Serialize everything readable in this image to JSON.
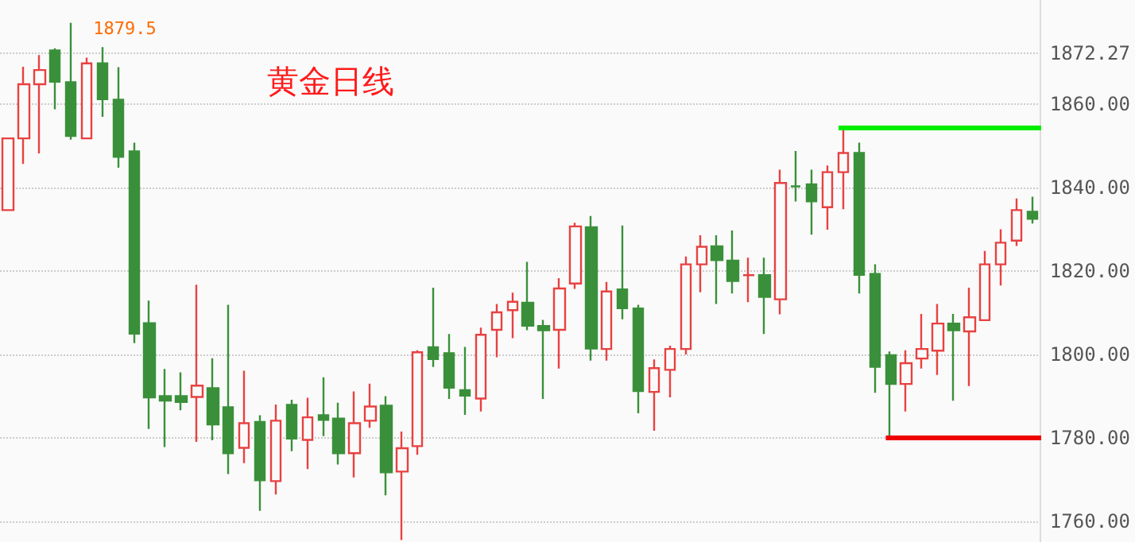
{
  "chart_data": {
    "type": "candlestick",
    "title": "黄金日线",
    "categories": [
      null,
      null,
      null,
      null,
      null,
      null,
      null,
      null,
      null,
      null,
      null,
      null,
      null,
      null,
      null,
      null,
      null,
      null,
      null,
      null,
      null,
      null,
      null,
      null,
      null,
      null,
      null,
      null,
      null,
      null,
      null,
      null,
      null,
      null,
      null,
      null,
      null,
      null,
      null,
      null,
      null,
      null,
      null,
      null,
      null,
      null,
      null,
      null,
      null,
      null,
      null,
      null,
      null,
      null,
      null,
      null,
      null,
      null,
      null,
      null,
      null,
      null,
      null,
      null,
      null,
      null
    ],
    "ohlc": [
      [
        1834.6,
        1851.8,
        1834.6,
        1851.8
      ],
      [
        1851.8,
        1869,
        1845.7,
        1864.8
      ],
      [
        1864.8,
        1871.8,
        1848.2,
        1868.2
      ],
      [
        1872.9,
        1873.4,
        1858.8,
        1865.4
      ],
      [
        1865.3,
        1879.5,
        1851.5,
        1852.4
      ],
      [
        1851.8,
        1871.2,
        1851.8,
        1869.8
      ],
      [
        1869.8,
        1873.7,
        1857,
        1861.2
      ],
      [
        1861.1,
        1868.9,
        1844.8,
        1847.4
      ],
      [
        1848.7,
        1850.8,
        1802.7,
        1805
      ],
      [
        1807.5,
        1812.9,
        1782.1,
        1789.7
      ],
      [
        1790,
        1796.5,
        1777.8,
        1788.9
      ],
      [
        1790,
        1795.7,
        1786.6,
        1788.6
      ],
      [
        1789.8,
        1816.7,
        1779,
        1792.5
      ],
      [
        1791.9,
        1799.1,
        1779.4,
        1783.2
      ],
      [
        1787.3,
        1811.9,
        1771.3,
        1776.3
      ],
      [
        1777.6,
        1796.1,
        1773.9,
        1783.5
      ],
      [
        1783.8,
        1785.4,
        1762.5,
        1769.8
      ],
      [
        1769.6,
        1788,
        1766.4,
        1784.1
      ],
      [
        1787.9,
        1789.1,
        1776.8,
        1779.8
      ],
      [
        1779.5,
        1789.6,
        1772.5,
        1784.9
      ],
      [
        1785.4,
        1794.5,
        1780.4,
        1784.3
      ],
      [
        1784.6,
        1788.4,
        1773.6,
        1776.3
      ],
      [
        1776.3,
        1791.1,
        1770.5,
        1783.5
      ],
      [
        1784.1,
        1793,
        1782.4,
        1787.5
      ],
      [
        1787.7,
        1790,
        1766.2,
        1771.7
      ],
      [
        1771.9,
        1781.5,
        1755.5,
        1777.5
      ],
      [
        1778,
        1801,
        1775.9,
        1800.5
      ],
      [
        1801.7,
        1816,
        1797,
        1798.9
      ],
      [
        1800.3,
        1804.9,
        1789.3,
        1792
      ],
      [
        1791.4,
        1801.8,
        1785.5,
        1790.1
      ],
      [
        1789.4,
        1806.4,
        1786.3,
        1804.7
      ],
      [
        1805.9,
        1812.1,
        1799.3,
        1810.1
      ],
      [
        1810.6,
        1814.8,
        1803.9,
        1812.6
      ],
      [
        1812.4,
        1822.2,
        1805.8,
        1806.9
      ],
      [
        1806.8,
        1808.3,
        1789.3,
        1805.8
      ],
      [
        1805.9,
        1818.3,
        1796.6,
        1815.8
      ],
      [
        1817,
        1831.6,
        1815.7,
        1830.7
      ],
      [
        1830.5,
        1833.2,
        1798.5,
        1801.4
      ],
      [
        1801.3,
        1817.4,
        1798.5,
        1815.1
      ],
      [
        1815.6,
        1830.9,
        1808.4,
        1811.1
      ],
      [
        1811,
        1811.9,
        1785.9,
        1791.2
      ],
      [
        1791,
        1798.8,
        1781.7,
        1796.7
      ],
      [
        1796.3,
        1802.1,
        1789.7,
        1801.3
      ],
      [
        1801.3,
        1823.5,
        1800,
        1821.6
      ],
      [
        1821.6,
        1828.6,
        1814.9,
        1825.8
      ],
      [
        1825.9,
        1828.6,
        1812.1,
        1822.6
      ],
      [
        1822.5,
        1829.7,
        1814.6,
        1817.6
      ],
      [
        1819,
        1823.2,
        1812.5,
        1819
      ],
      [
        1819,
        1823.2,
        1804.9,
        1813.8
      ],
      [
        1813.2,
        1844.3,
        1809.6,
        1841.1
      ],
      [
        1840.3,
        1848.8,
        1836.7,
        1840.3
      ],
      [
        1840.8,
        1844.3,
        1828.7,
        1836.7
      ],
      [
        1835.3,
        1845.3,
        1829.9,
        1843.7
      ],
      [
        1843.7,
        1854.5,
        1834.8,
        1848.3
      ],
      [
        1848.3,
        1850.8,
        1814.6,
        1819.1
      ],
      [
        1819.3,
        1821.6,
        1790.8,
        1797
      ],
      [
        1799.8,
        1800.7,
        1780,
        1792.9
      ],
      [
        1792.9,
        1801,
        1786.3,
        1797.9
      ],
      [
        1799,
        1809.7,
        1796.6,
        1801.3
      ],
      [
        1800.9,
        1812.1,
        1795.1,
        1807.4
      ],
      [
        1807.4,
        1809.7,
        1788.9,
        1805.8
      ],
      [
        1805.5,
        1816,
        1792.4,
        1808.9
      ],
      [
        1808.2,
        1824.8,
        1808.2,
        1821.6
      ],
      [
        1821.6,
        1830,
        1816.5,
        1826.8
      ],
      [
        1827.3,
        1837.4,
        1826,
        1834.6
      ],
      [
        1834.2,
        1837.8,
        1831.4,
        1832.5
      ]
    ],
    "colors": [
      "#e84141",
      "#e84141",
      "#e84141",
      "#3a903a",
      "#3a903a",
      "#e84141",
      "#3a903a",
      "#3a903a",
      "#3a903a",
      "#3a903a",
      "#3a903a",
      "#3a903a",
      "#e84141",
      "#3a903a",
      "#3a903a",
      "#e84141",
      "#3a903a",
      "#e84141",
      "#3a903a",
      "#e84141",
      "#3a903a",
      "#3a903a",
      "#e84141",
      "#e84141",
      "#3a903a",
      "#e84141",
      "#e84141",
      "#3a903a",
      "#3a903a",
      "#3a903a",
      "#e84141",
      "#e84141",
      "#e84141",
      "#3a903a",
      "#3a903a",
      "#e84141",
      "#e84141",
      "#3a903a",
      "#e84141",
      "#3a903a",
      "#3a903a",
      "#e84141",
      "#e84141",
      "#e84141",
      "#e84141",
      "#3a903a",
      "#3a903a",
      "#e84141",
      "#3a903a",
      "#e84141",
      "#3a903a",
      "#3a903a",
      "#e84141",
      "#e84141",
      "#3a903a",
      "#3a903a",
      "#3a903a",
      "#e84141",
      "#e84141",
      "#e84141",
      "#3a903a",
      "#e84141",
      "#e84141",
      "#e84141",
      "#e84141",
      "#3a903a"
    ],
    "ylim": [
      1755,
      1885
    ],
    "yticks": [
      {
        "value": 1760,
        "label": "1760.00"
      },
      {
        "value": 1780,
        "label": "1780.00"
      },
      {
        "value": 1800,
        "label": "1800.00"
      },
      {
        "value": 1820,
        "label": "1820.00"
      },
      {
        "value": 1840,
        "label": "1840.00"
      },
      {
        "value": 1860,
        "label": "1860.00"
      },
      {
        "value": 1872.27,
        "label": "1872.27"
      }
    ],
    "grid": "y",
    "ref_lines": [
      {
        "axis": "y",
        "value": 1854.5,
        "color": "#00ee00"
      },
      {
        "axis": "y",
        "value": 1780,
        "color": "#ee0000"
      }
    ],
    "annotations": [
      "1879.5"
    ]
  }
}
